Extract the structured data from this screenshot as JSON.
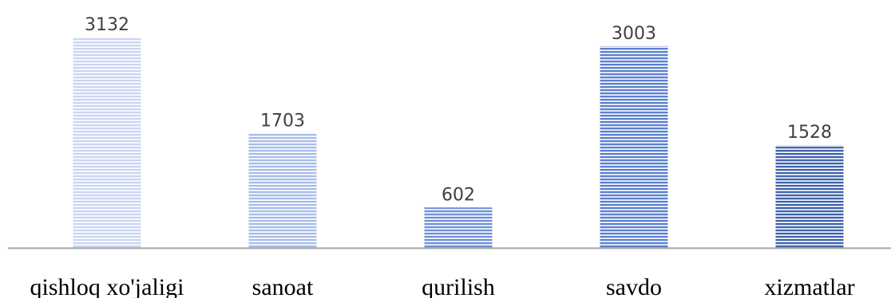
{
  "chart_data": {
    "type": "bar",
    "title": "",
    "xlabel": "",
    "ylabel": "",
    "categories": [
      "qishloq xo'jaligi",
      "sanoat",
      "qurilish",
      "savdo",
      "xizmatlar"
    ],
    "values": [
      3132,
      1703,
      602,
      3003,
      1528
    ],
    "value_labels": [
      "3132",
      "1703",
      "602",
      "3003",
      "1528"
    ],
    "ylim": [
      0,
      3132
    ],
    "grid": false,
    "legend": "none",
    "bar_fill": "horizontal-stripes",
    "bar_colors": [
      "#c9d6f2",
      "#a7bde8",
      "#6f90d8",
      "#5a80cf",
      "#3f62ad"
    ],
    "axis_color": "#a6a6a6",
    "label_color": "#404040"
  }
}
